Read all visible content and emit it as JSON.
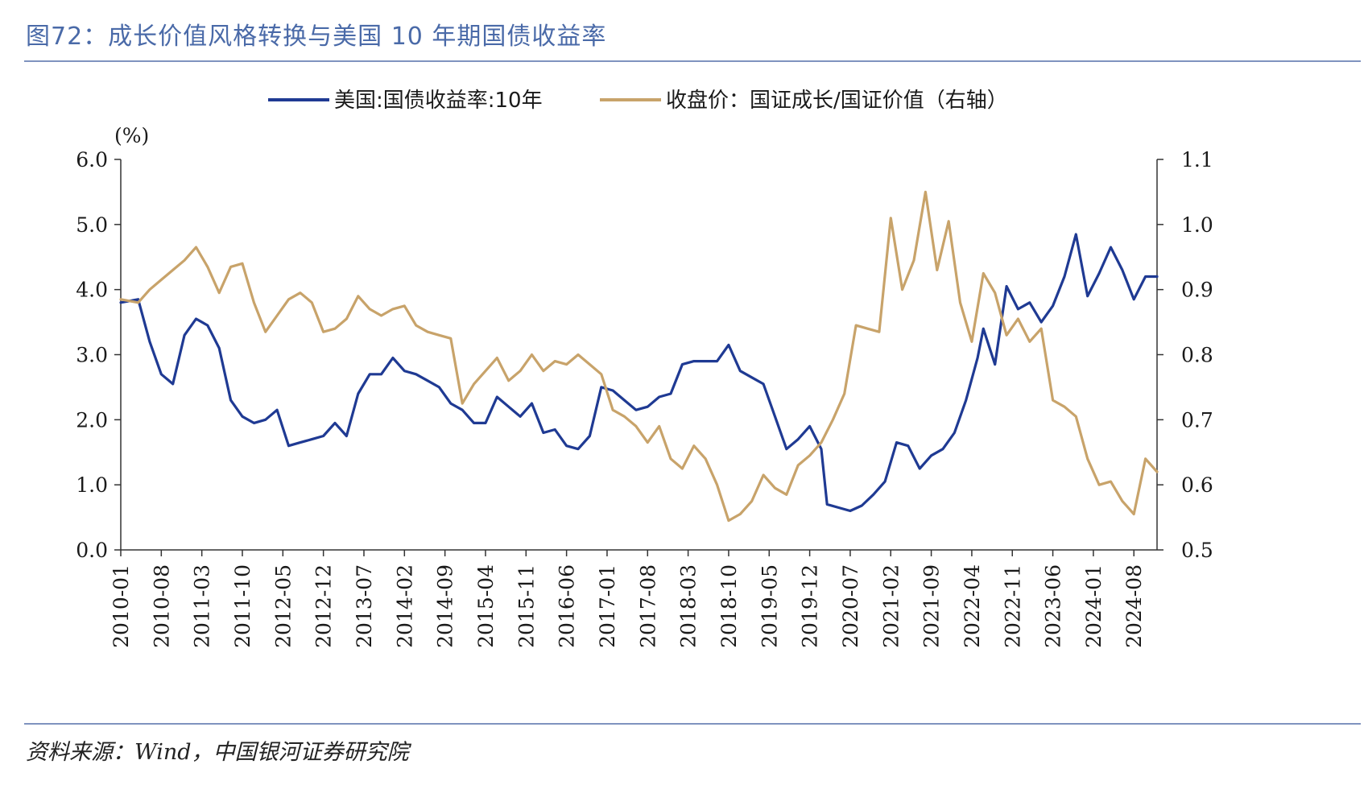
{
  "title": "图72：成长价值风格转换与美国 10 年期国债收益率",
  "source": "资料来源：Wind，中国银河证券研究院",
  "chart_data": {
    "type": "line",
    "unit_label": "(%)",
    "legend_placement": "top",
    "grid": false,
    "x_tick_labels": [
      "2010-01",
      "2010-08",
      "2011-03",
      "2011-10",
      "2012-05",
      "2012-12",
      "2013-07",
      "2014-02",
      "2014-09",
      "2015-04",
      "2015-11",
      "2016-06",
      "2017-01",
      "2017-08",
      "2018-03",
      "2018-10",
      "2019-05",
      "2019-12",
      "2020-07",
      "2021-02",
      "2021-09",
      "2022-04",
      "2022-11",
      "2023-06",
      "2024-01",
      "2024-08"
    ],
    "x_range": [
      "2010-01",
      "2024-12"
    ],
    "y_left": {
      "range": [
        0,
        6
      ],
      "ticks": [
        "0.0",
        "1.0",
        "2.0",
        "3.0",
        "4.0",
        "5.0",
        "6.0"
      ]
    },
    "y_right": {
      "range": [
        0.5,
        1.1
      ],
      "ticks": [
        "0.5",
        "0.6",
        "0.7",
        "0.8",
        "0.9",
        "1.0",
        "1.1"
      ]
    },
    "series": [
      {
        "name": "美国:国债收益率:10年",
        "axis": "left",
        "color": "#1f3a93",
        "points": [
          [
            "2010-01",
            3.8
          ],
          [
            "2010-04",
            3.85
          ],
          [
            "2010-06",
            3.2
          ],
          [
            "2010-08",
            2.7
          ],
          [
            "2010-10",
            2.55
          ],
          [
            "2010-12",
            3.3
          ],
          [
            "2011-02",
            3.55
          ],
          [
            "2011-04",
            3.45
          ],
          [
            "2011-06",
            3.1
          ],
          [
            "2011-08",
            2.3
          ],
          [
            "2011-10",
            2.05
          ],
          [
            "2011-12",
            1.95
          ],
          [
            "2012-02",
            2.0
          ],
          [
            "2012-04",
            2.15
          ],
          [
            "2012-06",
            1.6
          ],
          [
            "2012-08",
            1.65
          ],
          [
            "2012-10",
            1.7
          ],
          [
            "2012-12",
            1.75
          ],
          [
            "2013-02",
            1.95
          ],
          [
            "2013-04",
            1.75
          ],
          [
            "2013-06",
            2.4
          ],
          [
            "2013-08",
            2.7
          ],
          [
            "2013-10",
            2.7
          ],
          [
            "2013-12",
            2.95
          ],
          [
            "2014-02",
            2.75
          ],
          [
            "2014-04",
            2.7
          ],
          [
            "2014-06",
            2.6
          ],
          [
            "2014-08",
            2.5
          ],
          [
            "2014-10",
            2.25
          ],
          [
            "2014-12",
            2.15
          ],
          [
            "2015-02",
            1.95
          ],
          [
            "2015-04",
            1.95
          ],
          [
            "2015-06",
            2.35
          ],
          [
            "2015-08",
            2.2
          ],
          [
            "2015-10",
            2.05
          ],
          [
            "2015-12",
            2.25
          ],
          [
            "2016-02",
            1.8
          ],
          [
            "2016-04",
            1.85
          ],
          [
            "2016-06",
            1.6
          ],
          [
            "2016-08",
            1.55
          ],
          [
            "2016-10",
            1.75
          ],
          [
            "2016-12",
            2.5
          ],
          [
            "2017-02",
            2.45
          ],
          [
            "2017-04",
            2.3
          ],
          [
            "2017-06",
            2.15
          ],
          [
            "2017-08",
            2.2
          ],
          [
            "2017-10",
            2.35
          ],
          [
            "2017-12",
            2.4
          ],
          [
            "2018-02",
            2.85
          ],
          [
            "2018-04",
            2.9
          ],
          [
            "2018-06",
            2.9
          ],
          [
            "2018-08",
            2.9
          ],
          [
            "2018-10",
            3.15
          ],
          [
            "2018-12",
            2.75
          ],
          [
            "2019-02",
            2.65
          ],
          [
            "2019-04",
            2.55
          ],
          [
            "2019-06",
            2.05
          ],
          [
            "2019-08",
            1.55
          ],
          [
            "2019-10",
            1.7
          ],
          [
            "2019-12",
            1.9
          ],
          [
            "2020-02",
            1.55
          ],
          [
            "2020-03",
            0.7
          ],
          [
            "2020-05",
            0.65
          ],
          [
            "2020-07",
            0.6
          ],
          [
            "2020-09",
            0.68
          ],
          [
            "2020-11",
            0.85
          ],
          [
            "2021-01",
            1.05
          ],
          [
            "2021-03",
            1.65
          ],
          [
            "2021-05",
            1.6
          ],
          [
            "2021-07",
            1.25
          ],
          [
            "2021-09",
            1.45
          ],
          [
            "2021-11",
            1.55
          ],
          [
            "2022-01",
            1.8
          ],
          [
            "2022-03",
            2.3
          ],
          [
            "2022-05",
            2.95
          ],
          [
            "2022-06",
            3.4
          ],
          [
            "2022-08",
            2.85
          ],
          [
            "2022-10",
            4.05
          ],
          [
            "2022-12",
            3.7
          ],
          [
            "2023-02",
            3.8
          ],
          [
            "2023-04",
            3.5
          ],
          [
            "2023-06",
            3.75
          ],
          [
            "2023-08",
            4.2
          ],
          [
            "2023-10",
            4.85
          ],
          [
            "2023-12",
            3.9
          ],
          [
            "2024-02",
            4.25
          ],
          [
            "2024-04",
            4.65
          ],
          [
            "2024-06",
            4.3
          ],
          [
            "2024-08",
            3.85
          ],
          [
            "2024-10",
            4.2
          ],
          [
            "2024-12",
            4.2
          ]
        ]
      },
      {
        "name": "收盘价：国证成长/国证价值（右轴）",
        "axis": "right",
        "color": "#c8a36a",
        "points": [
          [
            "2010-01",
            0.885
          ],
          [
            "2010-04",
            0.88
          ],
          [
            "2010-06",
            0.9
          ],
          [
            "2010-08",
            0.915
          ],
          [
            "2010-10",
            0.93
          ],
          [
            "2010-12",
            0.945
          ],
          [
            "2011-02",
            0.965
          ],
          [
            "2011-04",
            0.935
          ],
          [
            "2011-06",
            0.895
          ],
          [
            "2011-08",
            0.935
          ],
          [
            "2011-10",
            0.94
          ],
          [
            "2011-12",
            0.88
          ],
          [
            "2012-02",
            0.835
          ],
          [
            "2012-04",
            0.86
          ],
          [
            "2012-06",
            0.885
          ],
          [
            "2012-08",
            0.895
          ],
          [
            "2012-10",
            0.88
          ],
          [
            "2012-12",
            0.835
          ],
          [
            "2013-02",
            0.84
          ],
          [
            "2013-04",
            0.855
          ],
          [
            "2013-06",
            0.89
          ],
          [
            "2013-08",
            0.87
          ],
          [
            "2013-10",
            0.86
          ],
          [
            "2013-12",
            0.87
          ],
          [
            "2014-02",
            0.875
          ],
          [
            "2014-04",
            0.845
          ],
          [
            "2014-06",
            0.835
          ],
          [
            "2014-08",
            0.83
          ],
          [
            "2014-10",
            0.825
          ],
          [
            "2014-12",
            0.725
          ],
          [
            "2015-02",
            0.755
          ],
          [
            "2015-04",
            0.775
          ],
          [
            "2015-06",
            0.795
          ],
          [
            "2015-08",
            0.76
          ],
          [
            "2015-10",
            0.775
          ],
          [
            "2015-12",
            0.8
          ],
          [
            "2016-02",
            0.775
          ],
          [
            "2016-04",
            0.79
          ],
          [
            "2016-06",
            0.785
          ],
          [
            "2016-08",
            0.8
          ],
          [
            "2016-10",
            0.785
          ],
          [
            "2016-12",
            0.77
          ],
          [
            "2017-02",
            0.715
          ],
          [
            "2017-04",
            0.705
          ],
          [
            "2017-06",
            0.69
          ],
          [
            "2017-08",
            0.665
          ],
          [
            "2017-10",
            0.69
          ],
          [
            "2017-12",
            0.64
          ],
          [
            "2018-02",
            0.625
          ],
          [
            "2018-04",
            0.66
          ],
          [
            "2018-06",
            0.64
          ],
          [
            "2018-08",
            0.6
          ],
          [
            "2018-10",
            0.545
          ],
          [
            "2018-12",
            0.555
          ],
          [
            "2019-02",
            0.575
          ],
          [
            "2019-04",
            0.615
          ],
          [
            "2019-06",
            0.595
          ],
          [
            "2019-08",
            0.585
          ],
          [
            "2019-10",
            0.63
          ],
          [
            "2019-12",
            0.645
          ],
          [
            "2020-02",
            0.665
          ],
          [
            "2020-04",
            0.7
          ],
          [
            "2020-06",
            0.74
          ],
          [
            "2020-08",
            0.845
          ],
          [
            "2020-10",
            0.84
          ],
          [
            "2020-12",
            0.835
          ],
          [
            "2021-02",
            1.01
          ],
          [
            "2021-04",
            0.9
          ],
          [
            "2021-06",
            0.945
          ],
          [
            "2021-08",
            1.05
          ],
          [
            "2021-10",
            0.93
          ],
          [
            "2021-12",
            1.005
          ],
          [
            "2022-02",
            0.88
          ],
          [
            "2022-04",
            0.82
          ],
          [
            "2022-06",
            0.925
          ],
          [
            "2022-08",
            0.895
          ],
          [
            "2022-10",
            0.83
          ],
          [
            "2022-12",
            0.855
          ],
          [
            "2023-02",
            0.82
          ],
          [
            "2023-04",
            0.84
          ],
          [
            "2023-06",
            0.73
          ],
          [
            "2023-08",
            0.72
          ],
          [
            "2023-10",
            0.705
          ],
          [
            "2023-12",
            0.64
          ],
          [
            "2024-02",
            0.6
          ],
          [
            "2024-04",
            0.605
          ],
          [
            "2024-06",
            0.575
          ],
          [
            "2024-08",
            0.555
          ],
          [
            "2024-10",
            0.64
          ],
          [
            "2024-12",
            0.62
          ]
        ]
      }
    ]
  }
}
